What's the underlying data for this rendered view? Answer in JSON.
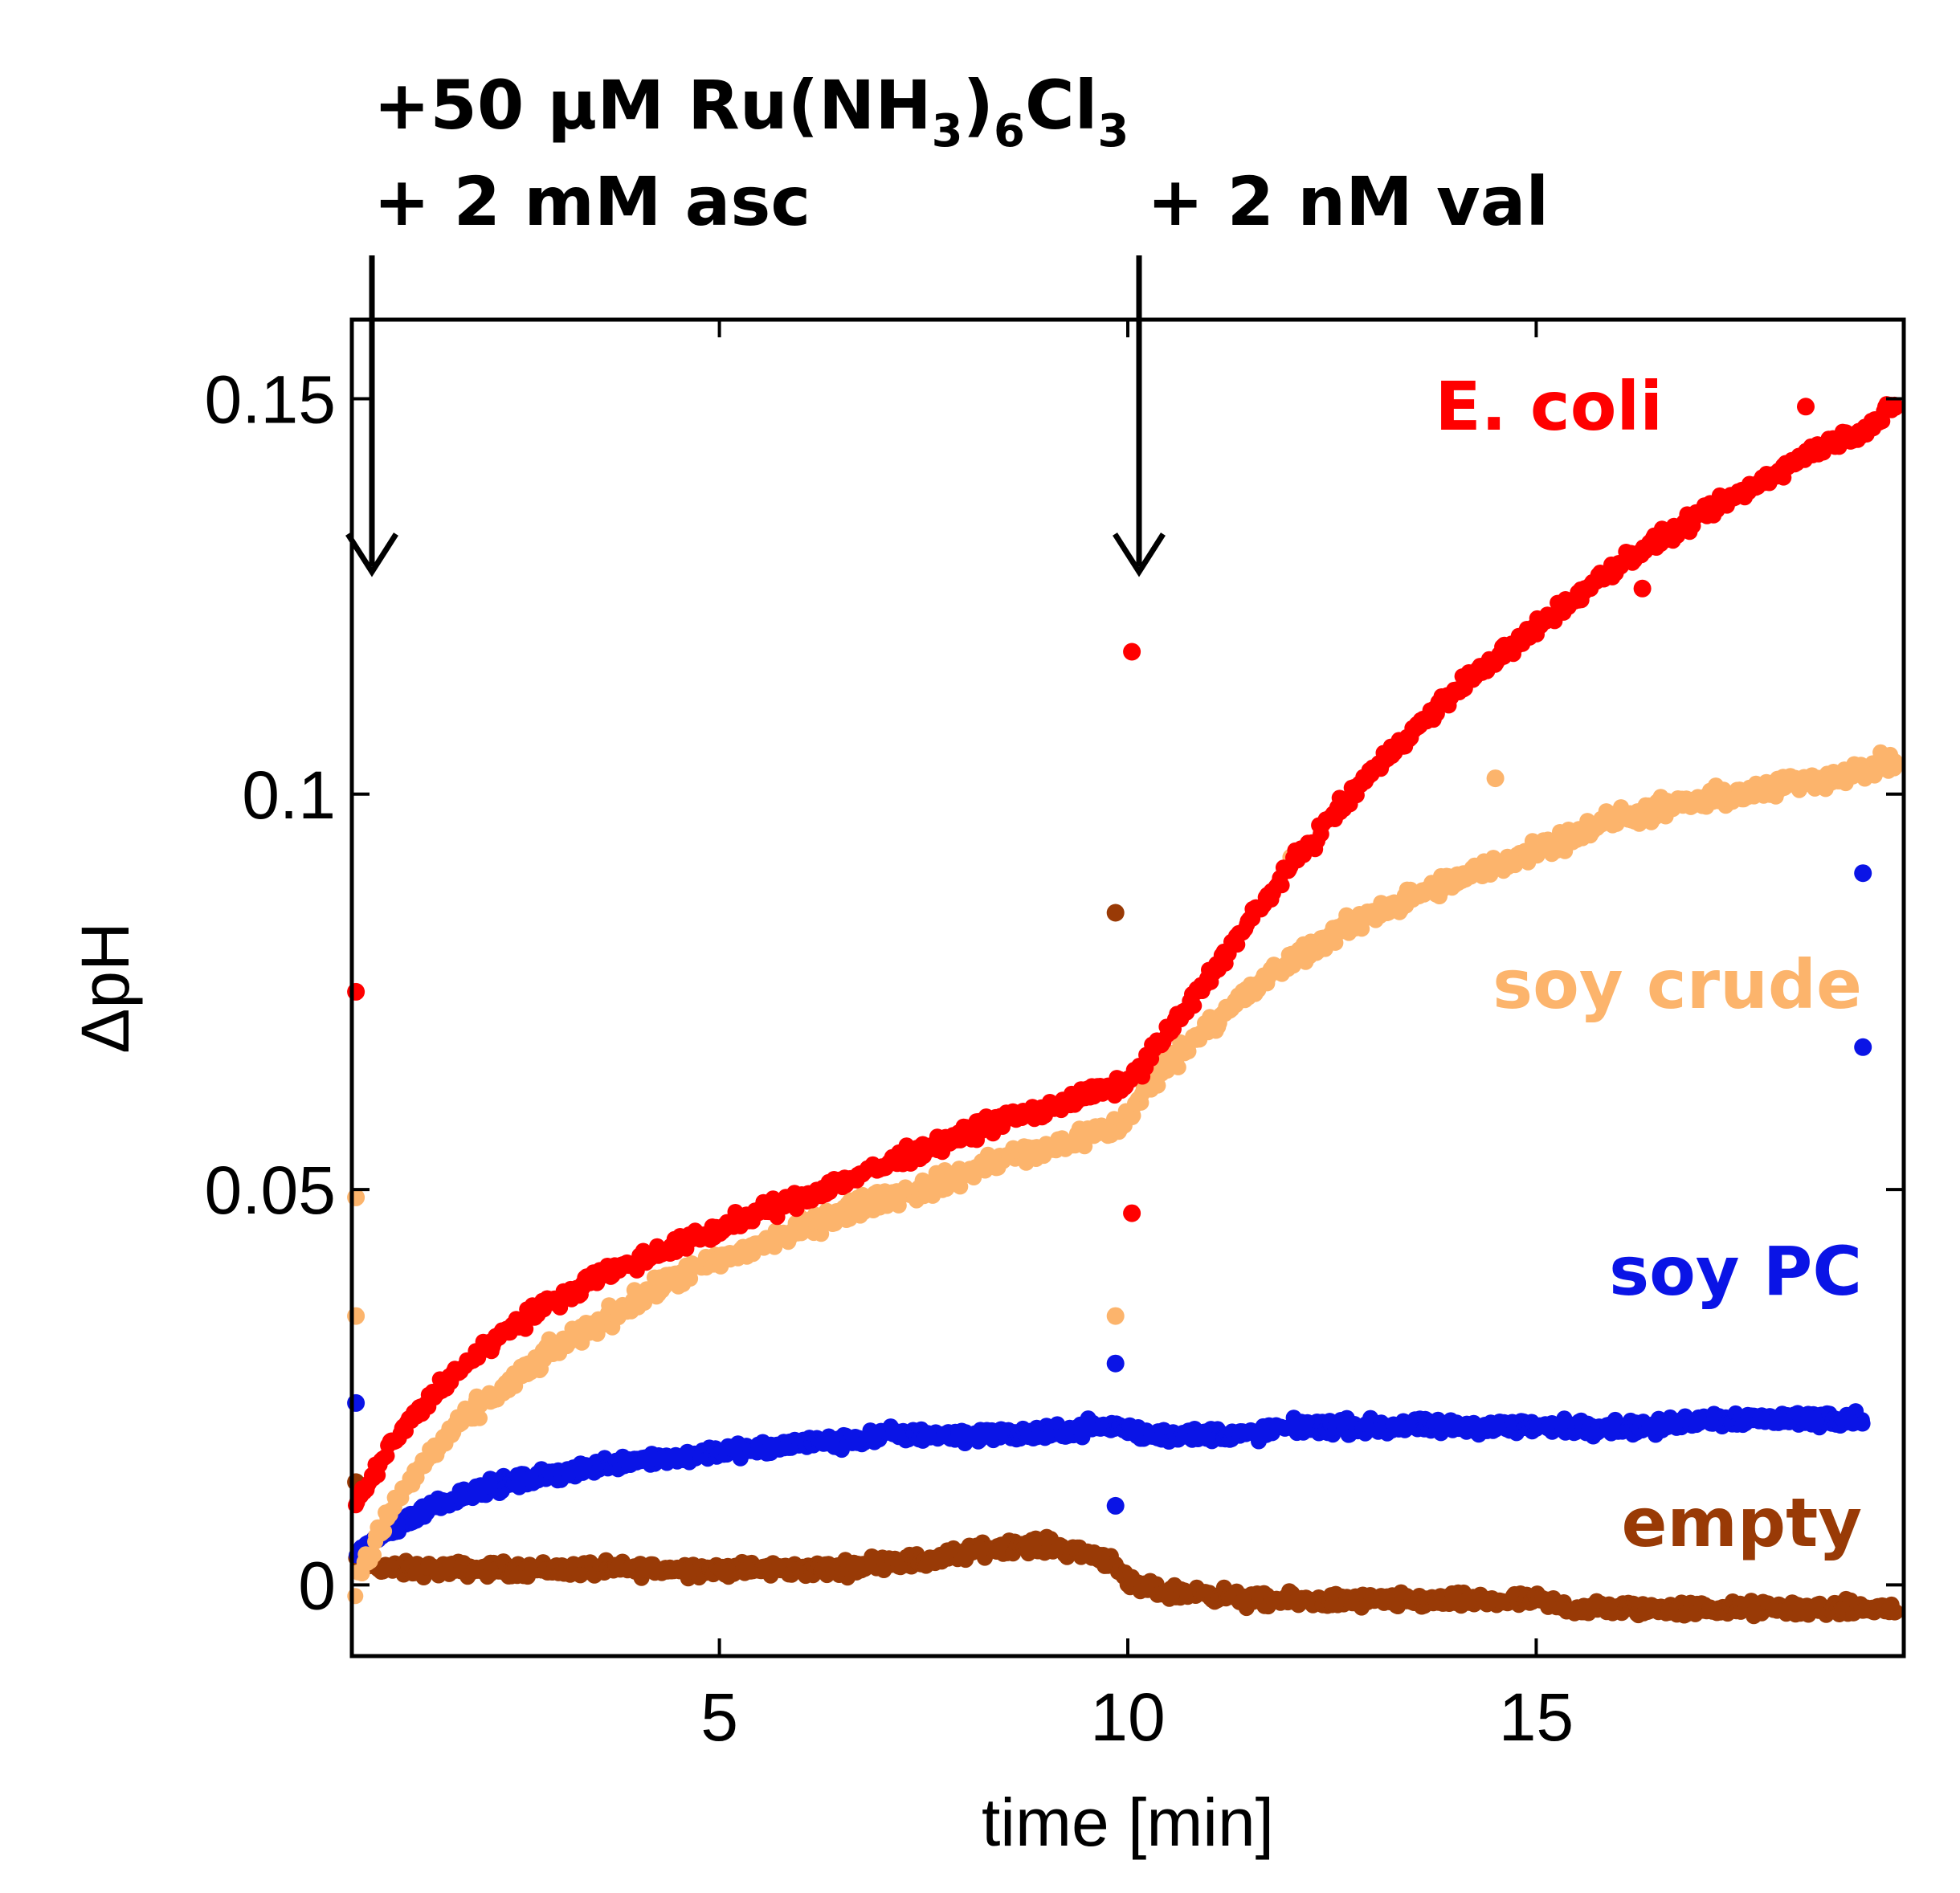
{
  "chart_data": {
    "type": "scatter",
    "title": "",
    "xlabel": "time [min]",
    "ylabel": "ΔpH",
    "xlim": [
      0.5,
      19.5
    ],
    "ylim": [
      -0.009,
      0.16
    ],
    "xticks": [
      5,
      10,
      15
    ],
    "xtick_labels": [
      "5",
      "10",
      "15"
    ],
    "yticks": [
      0,
      0.05,
      0.1,
      0.15
    ],
    "ytick_labels": [
      "0",
      "0.05",
      "0.1",
      "0.15"
    ],
    "grid": false,
    "legend": "inline labels at right",
    "colors": {
      "ecoli": "#ff0000",
      "soy_crude": "#fcb46c",
      "soy_pc": "#0a14e6",
      "empty": "#993a06"
    },
    "series": [
      {
        "key": "ecoli",
        "name": "E. coli",
        "color": "#ff0000",
        "x": [
          0.55,
          1.0,
          1.5,
          2.0,
          2.5,
          3.0,
          3.5,
          4.0,
          4.5,
          5.0,
          5.5,
          6.0,
          6.5,
          7.0,
          7.5,
          8.0,
          8.5,
          9.0,
          9.5,
          9.9,
          10.2,
          10.5,
          10.8,
          11.0,
          11.5,
          12.0,
          12.5,
          13.0,
          13.5,
          14.0,
          14.5,
          15.0,
          15.5,
          16.0,
          16.5,
          17.0,
          17.5,
          18.0,
          18.5,
          19.0,
          19.4
        ],
        "values": [
          0.01,
          0.018,
          0.024,
          0.029,
          0.033,
          0.036,
          0.039,
          0.041,
          0.043,
          0.045,
          0.047,
          0.049,
          0.051,
          0.053,
          0.055,
          0.057,
          0.059,
          0.06,
          0.062,
          0.063,
          0.066,
          0.07,
          0.074,
          0.077,
          0.084,
          0.091,
          0.097,
          0.103,
          0.108,
          0.113,
          0.117,
          0.121,
          0.125,
          0.129,
          0.132,
          0.135,
          0.138,
          0.141,
          0.144,
          0.146,
          0.149
        ],
        "outliers": [
          [
            0.55,
            0.075
          ],
          [
            10.05,
            0.118
          ],
          [
            10.05,
            0.047
          ],
          [
            16.3,
            0.126
          ],
          [
            18.3,
            0.149
          ]
        ]
      },
      {
        "key": "soy_crude",
        "name": "soy crude",
        "color": "#fcb46c",
        "x": [
          0.55,
          1.0,
          1.5,
          2.0,
          2.5,
          3.0,
          3.5,
          4.0,
          4.5,
          5.0,
          5.5,
          6.0,
          6.5,
          7.0,
          7.5,
          8.0,
          8.5,
          9.0,
          9.5,
          9.9,
          10.2,
          10.5,
          10.8,
          11.0,
          11.5,
          12.0,
          12.5,
          13.0,
          13.5,
          14.0,
          14.5,
          15.0,
          15.5,
          16.0,
          16.5,
          17.0,
          17.5,
          18.0,
          18.5,
          19.0,
          19.4
        ],
        "values": [
          0.0,
          0.01,
          0.017,
          0.022,
          0.026,
          0.03,
          0.033,
          0.036,
          0.039,
          0.041,
          0.043,
          0.045,
          0.047,
          0.049,
          0.05,
          0.052,
          0.054,
          0.055,
          0.057,
          0.058,
          0.062,
          0.066,
          0.069,
          0.071,
          0.075,
          0.079,
          0.082,
          0.085,
          0.087,
          0.089,
          0.091,
          0.093,
          0.095,
          0.097,
          0.098,
          0.099,
          0.1,
          0.101,
          0.102,
          0.103,
          0.104
        ],
        "outliers": [
          [
            0.55,
            0.049
          ],
          [
            0.55,
            0.034
          ],
          [
            9.85,
            0.034
          ],
          [
            14.5,
            0.102
          ],
          [
            12.0,
            0.092
          ]
        ]
      },
      {
        "key": "soy_pc",
        "name": "soy PC",
        "color": "#0a14e6",
        "x": [
          0.55,
          1.0,
          1.5,
          2.0,
          2.5,
          3.0,
          3.5,
          4.0,
          4.5,
          5.0,
          5.5,
          6.0,
          6.5,
          7.0,
          7.5,
          8.0,
          8.5,
          9.0,
          9.5,
          9.9,
          10.2,
          10.5,
          11.0,
          11.5,
          12.0,
          12.5,
          13.0,
          13.5,
          14.0,
          14.5,
          15.0,
          15.5,
          16.0,
          16.5,
          17.0,
          17.5,
          18.0,
          18.5,
          19.0
        ],
        "values": [
          0.004,
          0.007,
          0.01,
          0.012,
          0.013,
          0.014,
          0.015,
          0.016,
          0.016,
          0.017,
          0.017,
          0.018,
          0.018,
          0.019,
          0.019,
          0.019,
          0.019,
          0.019,
          0.02,
          0.02,
          0.019,
          0.019,
          0.019,
          0.019,
          0.02,
          0.02,
          0.02,
          0.02,
          0.02,
          0.02,
          0.02,
          0.02,
          0.02,
          0.02,
          0.021,
          0.021,
          0.021,
          0.021,
          0.021
        ],
        "outliers": [
          [
            0.55,
            0.023
          ],
          [
            9.85,
            0.058
          ],
          [
            9.85,
            0.028
          ],
          [
            9.85,
            0.01
          ],
          [
            19.0,
            0.09
          ],
          [
            19.0,
            0.068
          ]
        ]
      },
      {
        "key": "empty",
        "name": "empty",
        "color": "#993a06",
        "x": [
          0.55,
          1.0,
          1.5,
          2.0,
          2.5,
          3.0,
          3.5,
          4.0,
          4.5,
          5.0,
          5.5,
          6.0,
          6.5,
          7.0,
          7.5,
          8.0,
          8.5,
          9.0,
          9.5,
          9.85,
          10.0,
          10.5,
          11.0,
          11.5,
          12.0,
          12.5,
          13.0,
          13.5,
          14.0,
          14.5,
          15.0,
          15.5,
          16.0,
          16.5,
          17.0,
          17.5,
          18.0,
          18.5,
          19.0,
          19.4
        ],
        "values": [
          0.003,
          0.002,
          0.002,
          0.002,
          0.002,
          0.002,
          0.002,
          0.002,
          0.002,
          0.002,
          0.002,
          0.002,
          0.002,
          0.003,
          0.003,
          0.004,
          0.005,
          0.005,
          0.004,
          0.003,
          0.0,
          -0.001,
          -0.001,
          -0.002,
          -0.002,
          -0.002,
          -0.002,
          -0.002,
          -0.002,
          -0.002,
          -0.002,
          -0.003,
          -0.003,
          -0.003,
          -0.003,
          -0.003,
          -0.003,
          -0.003,
          -0.003,
          -0.003
        ],
        "outliers": [
          [
            9.85,
            0.085
          ],
          [
            0.55,
            0.013
          ]
        ]
      }
    ],
    "annotations": [
      {
        "key": "ann_ru",
        "text_main": "+50 µM Ru(NH",
        "sub1": "3",
        "text_mid": ")",
        "sub2": "6",
        "text_end": "Cl",
        "sub3": "3",
        "x": 0.7
      },
      {
        "key": "ann_asc",
        "text": "+ 2 mM asc",
        "x": 0.7
      },
      {
        "key": "ann_val",
        "text": "+ 2 nM val",
        "x": 10.0
      }
    ]
  }
}
